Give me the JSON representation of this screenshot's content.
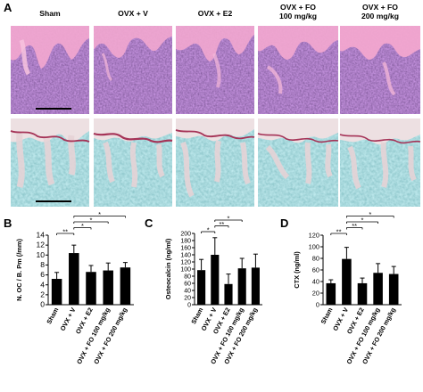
{
  "figure": {
    "panel_labels": {
      "A": "A",
      "B": "B",
      "C": "C",
      "D": "D"
    },
    "column_labels": [
      [
        "Sham"
      ],
      [
        "OVX + V"
      ],
      [
        "OVX + E2"
      ],
      [
        "OVX + FO",
        "100 mg/kg"
      ],
      [
        "OVX + FO",
        "200 mg/kg"
      ]
    ],
    "micrographs": {
      "row1_stain": "H&E",
      "row2_stain": "TRAP",
      "colors": {
        "he_bg": "#6a3f9a",
        "he_bone": "#f1a6cf",
        "trap_bg": "#5fb4b8",
        "trap_bone": "#e9dcdf"
      }
    }
  },
  "chart_data": [
    {
      "type": "bar",
      "panel": "B",
      "categories": [
        "Sham",
        "OVX + V",
        "OVX + E2",
        "OVX + FO 100 mg/kg",
        "OVX + FO 200 mg/kg"
      ],
      "values": [
        5.2,
        10.4,
        6.6,
        6.9,
        7.5
      ],
      "errors": [
        1.3,
        1.6,
        1.3,
        1.5,
        1.0
      ],
      "ylabel": "N. OC / B. Pm (/mm)",
      "ylim": [
        0,
        14
      ],
      "yticks": [
        0,
        2,
        4,
        6,
        8,
        10,
        12,
        14
      ],
      "significance": [
        {
          "from": 0,
          "to": 1,
          "label": "**"
        },
        {
          "from": 1,
          "to": 2,
          "label": "*"
        },
        {
          "from": 1,
          "to": 3,
          "label": "*"
        },
        {
          "from": 1,
          "to": 4,
          "label": "*"
        }
      ]
    },
    {
      "type": "bar",
      "panel": "C",
      "categories": [
        "Sham",
        "OVX + V",
        "OVX + E2",
        "OVX + FO 100 mg/kg",
        "OVX + FO 200 mg/kg"
      ],
      "values": [
        97,
        140,
        58,
        102,
        104
      ],
      "errors": [
        30,
        48,
        28,
        28,
        38
      ],
      "ylabel": "Osteocalcin (ng/ml)",
      "ylim": [
        0,
        200
      ],
      "yticks": [
        0,
        20,
        40,
        60,
        80,
        100,
        120,
        140,
        160,
        180,
        200
      ],
      "significance": [
        {
          "from": 0,
          "to": 1,
          "label": "*"
        },
        {
          "from": 1,
          "to": 2,
          "label": "**"
        },
        {
          "from": 1,
          "to": 3,
          "label": "*"
        }
      ]
    },
    {
      "type": "bar",
      "panel": "D",
      "categories": [
        "Sham",
        "OVX + V",
        "OVX + E2",
        "OVX + FO 100 mg/kg",
        "OVX + FO 200 mg/kg"
      ],
      "values": [
        37,
        79,
        37,
        55,
        53
      ],
      "errors": [
        6,
        20,
        9,
        16,
        13
      ],
      "ylabel": "CTX (ng/ml)",
      "ylim": [
        0,
        120
      ],
      "yticks": [
        0,
        20,
        40,
        60,
        80,
        100,
        120
      ],
      "significance": [
        {
          "from": 0,
          "to": 1,
          "label": "**"
        },
        {
          "from": 1,
          "to": 2,
          "label": "**"
        },
        {
          "from": 1,
          "to": 3,
          "label": "*"
        },
        {
          "from": 1,
          "to": 4,
          "label": "*"
        }
      ]
    }
  ]
}
